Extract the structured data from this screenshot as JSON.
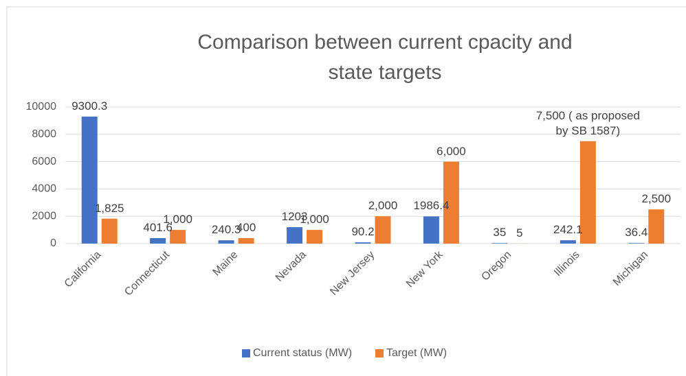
{
  "chart_data": {
    "type": "bar",
    "title": "Comparison between current cpacity and state targets",
    "categories": [
      "California",
      "Connecticut",
      "Maine",
      "Nevada",
      "New Jersey",
      "New York",
      "Oregon",
      "Illinois",
      "Michigan"
    ],
    "series": [
      {
        "name": "Current status (MW)",
        "color": "#4472c4",
        "values": [
          9300.3,
          401.6,
          240.3,
          1203,
          90.2,
          1986.4,
          35,
          242.1,
          36.4
        ]
      },
      {
        "name": "Target (MW)",
        "color": "#ed7d31",
        "values": [
          1825,
          1000,
          400,
          1000,
          2000,
          6000,
          5,
          7500,
          2500
        ],
        "value_labels": [
          "1,825",
          "1,000",
          "400",
          "1,000",
          "2,000",
          "6,000",
          "5",
          "7,500 ( as proposed by SB 1587)",
          "2,500"
        ]
      }
    ],
    "ylim": [
      0,
      10000
    ],
    "yticks": [
      0,
      2000,
      4000,
      6000,
      8000,
      10000
    ],
    "grid": true,
    "legend": "bottom"
  }
}
